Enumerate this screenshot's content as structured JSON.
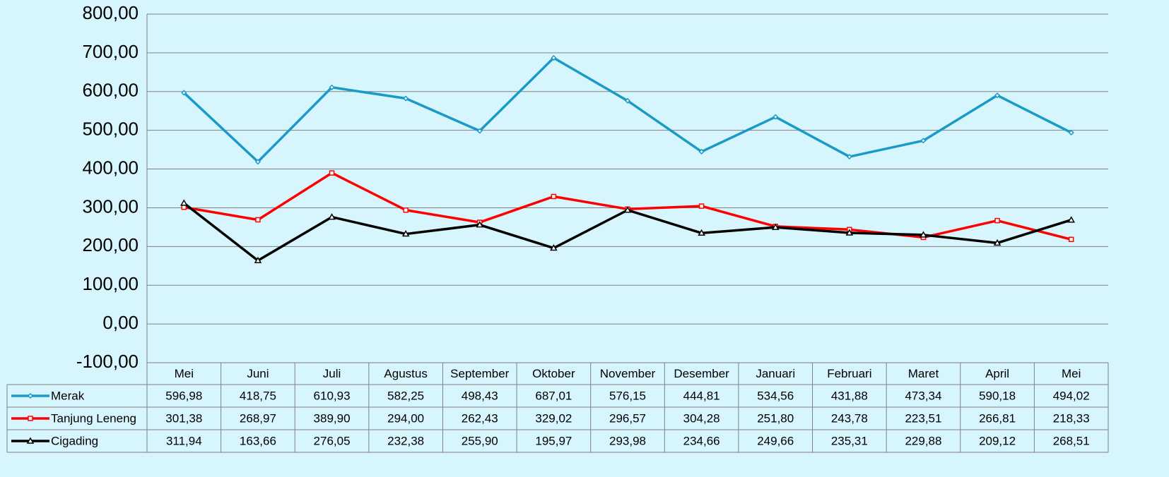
{
  "chart_data": {
    "type": "line",
    "categories": [
      "Mei",
      "Juni",
      "Juli",
      "Agustus",
      "September",
      "Oktober",
      "November",
      "Desember",
      "Januari",
      "Februari",
      "Maret",
      "April",
      "Mei"
    ],
    "series": [
      {
        "name": "Merak",
        "color": "#1a9bc7",
        "marker": "diamond",
        "values": [
          596.98,
          418.75,
          610.93,
          582.25,
          498.43,
          687.01,
          576.15,
          444.81,
          534.56,
          431.88,
          473.34,
          590.18,
          494.02
        ],
        "value_labels": [
          "596,98",
          "418,75",
          "610,93",
          "582,25",
          "498,43",
          "687,01",
          "576,15",
          "444,81",
          "534,56",
          "431,88",
          "473,34",
          "590,18",
          "494,02"
        ]
      },
      {
        "name": "Tanjung Leneng",
        "color": "#ff0000",
        "marker": "square",
        "values": [
          301.38,
          268.97,
          389.9,
          294.0,
          262.43,
          329.02,
          296.57,
          304.28,
          251.8,
          243.78,
          223.51,
          266.81,
          218.33
        ],
        "value_labels": [
          "301,38",
          "268,97",
          "389,90",
          "294,00",
          "262,43",
          "329,02",
          "296,57",
          "304,28",
          "251,80",
          "243,78",
          "223,51",
          "266,81",
          "218,33"
        ]
      },
      {
        "name": "Cigading",
        "color": "#000000",
        "marker": "triangle",
        "values": [
          311.94,
          163.66,
          276.05,
          232.38,
          255.9,
          195.97,
          293.98,
          234.66,
          249.66,
          235.31,
          229.88,
          209.12,
          268.51
        ],
        "value_labels": [
          "311,94",
          "163,66",
          "276,05",
          "232,38",
          "255,90",
          "195,97",
          "293,98",
          "234,66",
          "249,66",
          "235,31",
          "229,88",
          "209,12",
          "268,51"
        ]
      }
    ],
    "ylim": [
      -100,
      800
    ],
    "yticks": [
      {
        "value": -100,
        "label": "-100,00"
      },
      {
        "value": 0,
        "label": "0,00"
      },
      {
        "value": 100,
        "label": "100,00"
      },
      {
        "value": 200,
        "label": "200,00"
      },
      {
        "value": 300,
        "label": "300,00"
      },
      {
        "value": 400,
        "label": "400,00"
      },
      {
        "value": 500,
        "label": "500,00"
      },
      {
        "value": 600,
        "label": "600,00"
      },
      {
        "value": 700,
        "label": "700,00"
      },
      {
        "value": 800,
        "label": "800,00"
      }
    ],
    "grid": true
  }
}
